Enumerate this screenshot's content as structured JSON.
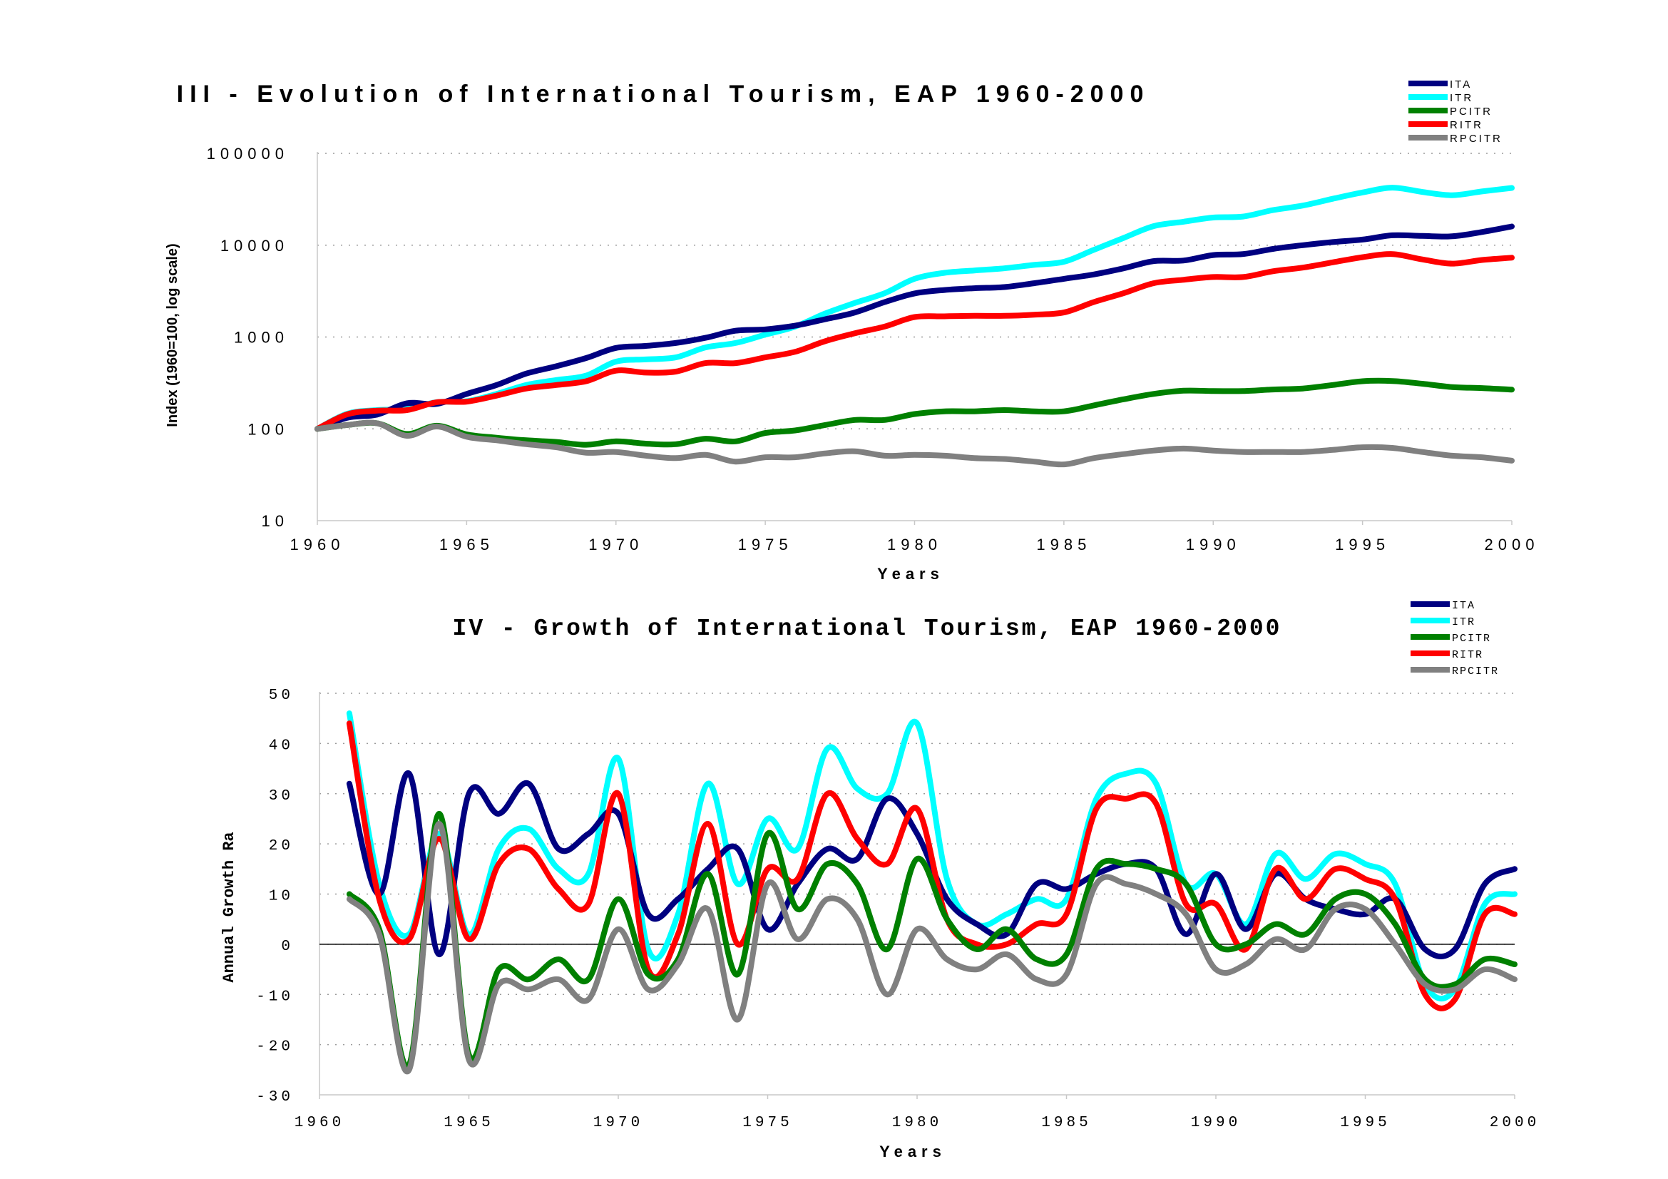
{
  "chart_data": [
    {
      "type": "line",
      "title": "III - Evolution of International Tourism, EAP 1960-2000",
      "xlabel": "Years",
      "ylabel": "Index (1960=100, log scale)",
      "yscale": "log",
      "ylim": [
        10,
        100000
      ],
      "xlim": [
        1960,
        2000
      ],
      "x_ticks": [
        "1960",
        "1965",
        "1970",
        "1975",
        "1980",
        "1985",
        "1990",
        "1995",
        "2000"
      ],
      "y_ticks": [
        "100000",
        "10000",
        "1000",
        "100",
        "10"
      ],
      "grid": true,
      "legend_position": "top-right",
      "x": [
        1960,
        1961,
        1962,
        1963,
        1964,
        1965,
        1966,
        1967,
        1968,
        1969,
        1970,
        1971,
        1972,
        1973,
        1974,
        1975,
        1976,
        1977,
        1978,
        1979,
        1980,
        1981,
        1982,
        1983,
        1984,
        1985,
        1986,
        1987,
        1988,
        1989,
        1990,
        1991,
        1992,
        1993,
        1994,
        1995,
        1996,
        1997,
        1998,
        1999,
        2000
      ],
      "series": [
        {
          "name": "ITA",
          "color": "#000080",
          "values": [
            100,
            132,
            143,
            190,
            187,
            240,
            300,
            400,
            480,
            590,
            760,
            800,
            860,
            980,
            1170,
            1210,
            1330,
            1560,
            1850,
            2400,
            2980,
            3250,
            3400,
            3500,
            3850,
            4300,
            4800,
            5600,
            6700,
            6800,
            7800,
            8000,
            9100,
            10000,
            10800,
            11500,
            12800,
            12600,
            12500,
            13900,
            16000
          ]
        },
        {
          "name": "ITR",
          "color": "#00ffff",
          "values": [
            100,
            146,
            160,
            165,
            195,
            200,
            240,
            300,
            340,
            380,
            540,
            570,
            600,
            770,
            860,
            1060,
            1300,
            1800,
            2350,
            3000,
            4300,
            5000,
            5300,
            5600,
            6100,
            6600,
            8900,
            12000,
            16100,
            18000,
            20000,
            20500,
            24100,
            27000,
            32000,
            37500,
            42300,
            38000,
            35000,
            38500,
            42000
          ]
        },
        {
          "name": "PCITR",
          "color": "#008000",
          "values": [
            100,
            110,
            115,
            88,
            108,
            87,
            80,
            75,
            72,
            67,
            73,
            69,
            68,
            78,
            73,
            90,
            96,
            110,
            125,
            125,
            145,
            155,
            155,
            160,
            155,
            155,
            180,
            210,
            240,
            260,
            258,
            258,
            268,
            275,
            300,
            330,
            332,
            310,
            285,
            278,
            267
          ]
        },
        {
          "name": "RITR",
          "color": "#ff0000",
          "values": [
            100,
            144,
            158,
            160,
            195,
            198,
            230,
            275,
            300,
            330,
            430,
            410,
            420,
            520,
            520,
            600,
            690,
            900,
            1100,
            1300,
            1650,
            1680,
            1700,
            1700,
            1750,
            1850,
            2400,
            3000,
            3850,
            4200,
            4500,
            4500,
            5200,
            5700,
            6500,
            7400,
            8000,
            7000,
            6300,
            6900,
            7300
          ]
        },
        {
          "name": "RPCITR",
          "color": "#808080",
          "values": [
            100,
            110,
            115,
            84,
            106,
            82,
            75,
            68,
            63,
            55,
            56,
            51,
            48,
            52,
            44,
            49,
            49,
            54,
            57,
            51,
            52,
            51,
            48,
            47,
            44,
            41,
            48,
            53,
            58,
            61,
            58,
            56,
            56,
            56,
            59,
            63,
            62,
            56,
            51,
            49,
            45
          ]
        }
      ]
    },
    {
      "type": "line",
      "title": "IV - Growth of International Tourism, EAP 1960-2000",
      "xlabel": "Years",
      "ylabel": "Annual Growth Ra",
      "ylim": [
        -30,
        50
      ],
      "xlim": [
        1960,
        2000
      ],
      "x_ticks": [
        "1960",
        "1965",
        "1970",
        "1975",
        "1980",
        "1985",
        "1990",
        "1995",
        "2000"
      ],
      "y_ticks": [
        "50",
        "40",
        "30",
        "20",
        "10",
        "0",
        "-10",
        "-20",
        "-30"
      ],
      "grid": true,
      "legend_position": "top-right",
      "x": [
        1961,
        1962,
        1963,
        1964,
        1965,
        1966,
        1967,
        1968,
        1969,
        1970,
        1971,
        1972,
        1973,
        1974,
        1975,
        1976,
        1977,
        1978,
        1979,
        1980,
        1981,
        1982,
        1983,
        1984,
        1985,
        1986,
        1987,
        1988,
        1989,
        1990,
        1991,
        1992,
        1993,
        1994,
        1995,
        1996,
        1997,
        1998,
        1999,
        2000
      ],
      "series": [
        {
          "name": "ITA",
          "color": "#000080",
          "values": [
            32,
            10,
            34,
            -2,
            30,
            26,
            32,
            19,
            22,
            26,
            6,
            9,
            15,
            19,
            3,
            12,
            19,
            17,
            29,
            22,
            9,
            4,
            2,
            12,
            11,
            14,
            16,
            15,
            2,
            14,
            3,
            14,
            9,
            7,
            6,
            9,
            -1,
            -1,
            12,
            15
          ]
        },
        {
          "name": "ITR",
          "color": "#00ffff",
          "values": [
            46,
            12,
            2,
            22,
            2,
            19,
            23,
            15,
            14,
            37,
            -1,
            6,
            32,
            12,
            25,
            19,
            39,
            31,
            30,
            44,
            13,
            4,
            6,
            9,
            9,
            29,
            34,
            32,
            12,
            14,
            4,
            18,
            13,
            18,
            16,
            12,
            -8,
            -9,
            8,
            10
          ]
        },
        {
          "name": "PCITR",
          "color": "#008000",
          "values": [
            10,
            3,
            -24,
            26,
            -22,
            -5,
            -7,
            -3,
            -7,
            9,
            -6,
            -3,
            14,
            -6,
            22,
            7,
            16,
            12,
            -1,
            17,
            5,
            -1,
            3,
            -3,
            -2,
            15,
            16,
            15,
            12,
            0,
            0,
            4,
            2,
            9,
            10,
            4,
            -7,
            -8,
            -3,
            -4
          ]
        },
        {
          "name": "RITR",
          "color": "#ff0000",
          "values": [
            44,
            9,
            1,
            21,
            1,
            16,
            19,
            11,
            8,
            30,
            -5,
            2,
            24,
            0,
            15,
            13,
            30,
            21,
            16,
            27,
            5,
            0,
            0,
            4,
            6,
            27,
            29,
            28,
            8,
            8,
            -1,
            15,
            9,
            15,
            13,
            9,
            -10,
            -11,
            6,
            6
          ]
        },
        {
          "name": "RPCITR",
          "color": "#808080",
          "values": [
            9,
            2,
            -25,
            24,
            -23,
            -8,
            -9,
            -7,
            -11,
            3,
            -9,
            -4,
            7,
            -15,
            12,
            1,
            9,
            5,
            -10,
            3,
            -3,
            -5,
            -2,
            -7,
            -6,
            12,
            12,
            10,
            6,
            -5,
            -4,
            1,
            -1,
            7,
            7,
            0,
            -8,
            -9,
            -5,
            -7
          ]
        }
      ]
    }
  ]
}
